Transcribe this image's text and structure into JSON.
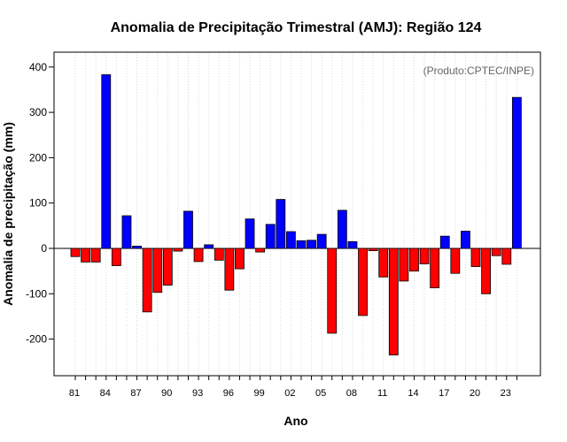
{
  "chart_data": {
    "type": "bar",
    "title": "Anomalia de Precipitação Trimestral (AMJ): Região 124",
    "xlabel": "Ano",
    "ylabel": "Anomalia de precipitação (mm)",
    "annotation": "(Produto:CPTEC/INPE)",
    "ylim": [
      -290,
      430
    ],
    "yticks": [
      400,
      300,
      200,
      100,
      0,
      -100,
      -200
    ],
    "xtick_labels": [
      "81",
      "84",
      "87",
      "90",
      "93",
      "96",
      "99",
      "02",
      "05",
      "08",
      "11",
      "14",
      "17",
      "20",
      "23"
    ],
    "grid": "vertical dotted",
    "colors": {
      "positive": "#0000ff",
      "negative": "#ff0000",
      "bar_edge": "#000000",
      "grid": "#d9d9d9",
      "annotation": "#666666"
    },
    "x": [
      1981,
      1982,
      1983,
      1984,
      1985,
      1986,
      1987,
      1988,
      1989,
      1990,
      1991,
      1992,
      1993,
      1994,
      1995,
      1996,
      1997,
      1998,
      1999,
      2000,
      2001,
      2002,
      2003,
      2004,
      2005,
      2006,
      2007,
      2008,
      2009,
      2010,
      2011,
      2012,
      2013,
      2014,
      2015,
      2016,
      2017,
      2018,
      2019,
      2020,
      2021,
      2022,
      2023,
      2024
    ],
    "values": [
      -18,
      -30,
      -30,
      383,
      -38,
      72,
      5,
      -140,
      -97,
      -81,
      -6,
      82,
      -29,
      8,
      -26,
      -92,
      -45,
      65,
      -8,
      53,
      108,
      37,
      17,
      18,
      31,
      -187,
      84,
      15,
      -148,
      -5,
      -63,
      -235,
      -72,
      -50,
      -34,
      -87,
      27,
      -55,
      38,
      -40,
      -100,
      -16,
      -35,
      333
    ]
  }
}
